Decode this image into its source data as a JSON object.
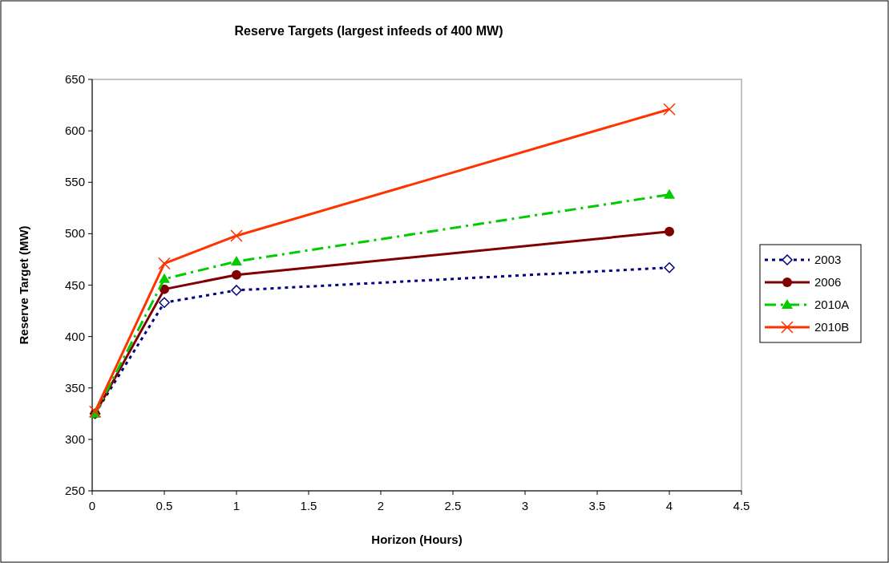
{
  "chart_data": {
    "type": "line",
    "title": "Reserve Targets (largest infeeds of 400 MW)",
    "xlabel": "Horizon (Hours)",
    "ylabel": "Reserve Target (MW)",
    "x": [
      0.02,
      0.5,
      1,
      4
    ],
    "series": [
      {
        "name": "2003",
        "color": "#000080",
        "values": [
          325,
          433,
          445,
          467
        ],
        "marker": "diamond",
        "line_style": "dotted"
      },
      {
        "name": "2006",
        "color": "#800000",
        "values": [
          325,
          446,
          460,
          502
        ],
        "marker": "circle",
        "line_style": "solid"
      },
      {
        "name": "2010A",
        "color": "#00cc00",
        "values": [
          325,
          456,
          473,
          538
        ],
        "marker": "triangle",
        "line_style": "dashed"
      },
      {
        "name": "2010B",
        "color": "#ff3300",
        "values": [
          327,
          471,
          498,
          621
        ],
        "marker": "cross",
        "line_style": "solid"
      }
    ],
    "xlim": [
      0,
      4.5
    ],
    "xticks": [
      0,
      0.5,
      1,
      1.5,
      2,
      2.5,
      3,
      3.5,
      4,
      4.5
    ],
    "ylim": [
      250,
      650
    ],
    "yticks": [
      250,
      300,
      350,
      400,
      450,
      500,
      550,
      600,
      650
    ],
    "grid": false,
    "legend": "right"
  }
}
